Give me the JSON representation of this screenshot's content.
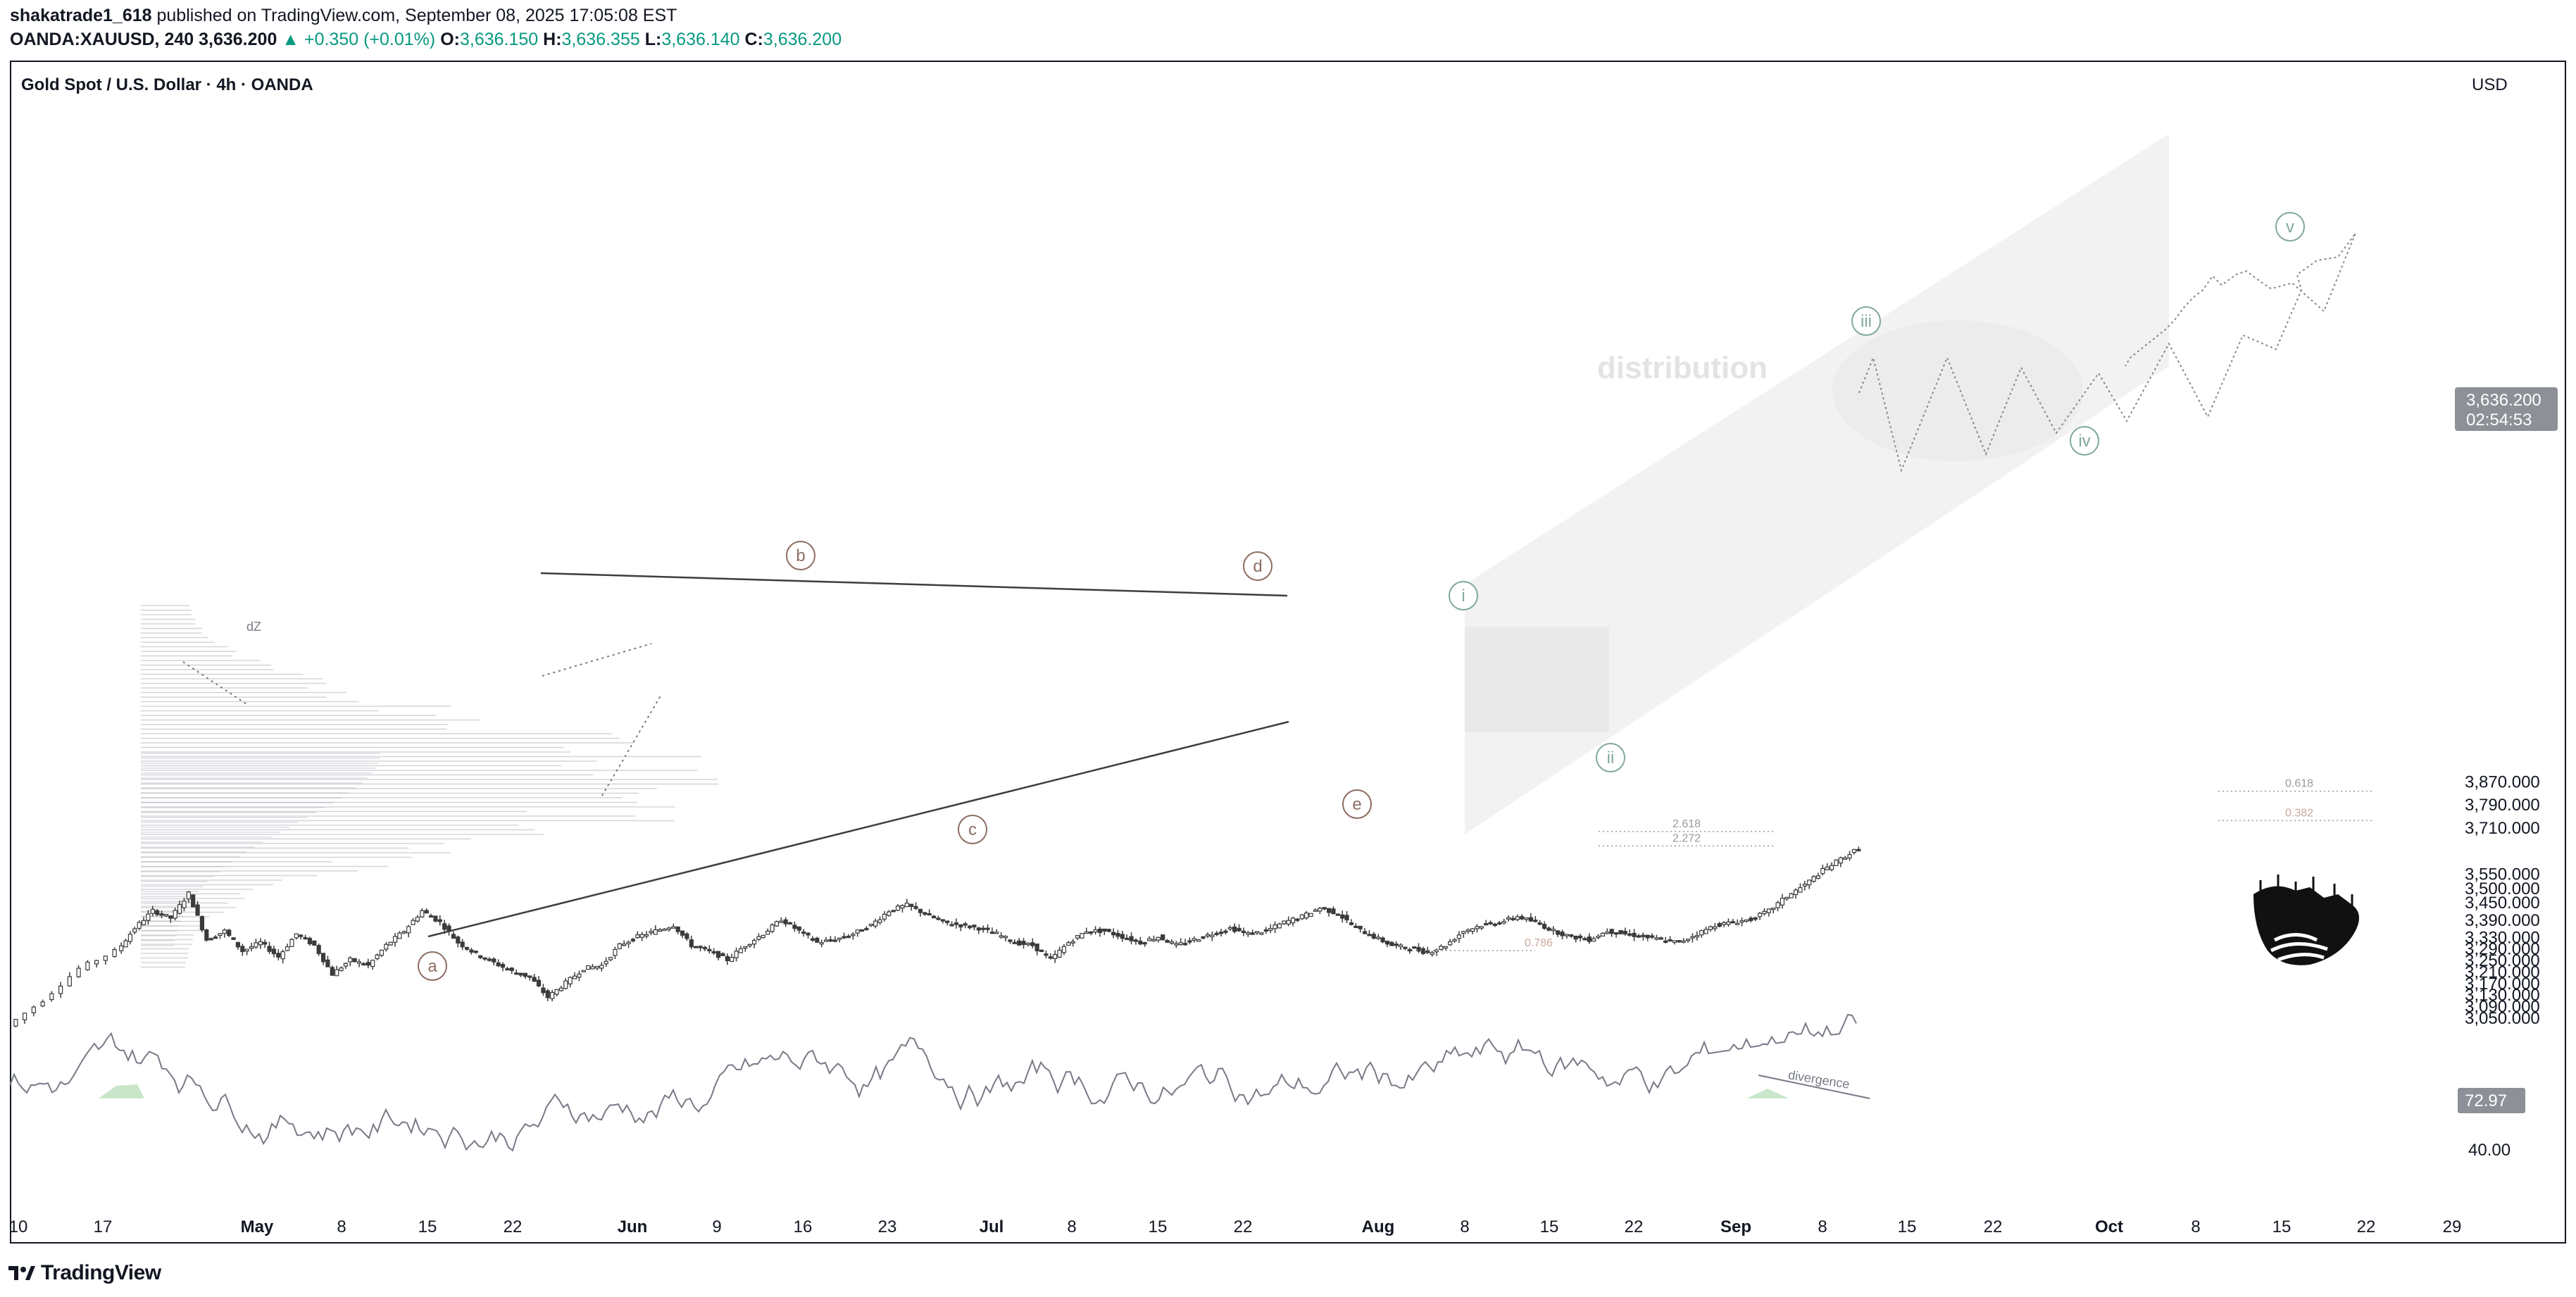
{
  "header": {
    "author": "shakatrade1_618",
    "published_text": "published on TradingView.com, September 08, 2025 17:05:08 EST",
    "symbol": "OANDA:XAUUSD, 240",
    "last_price": "3,636.200",
    "change": "▲ +0.350 (+0.01%)",
    "o_label": "O:",
    "o_value": "3,636.150",
    "h_label": "H:",
    "h_value": "3,636.355",
    "l_label": "L:",
    "l_value": "3,636.140",
    "c_label": "C:",
    "c_value": "3,636.200"
  },
  "pane": {
    "title": "Gold Spot / U.S. Dollar · 4h · OANDA",
    "currency": "USD",
    "price_tag": "3,636.200",
    "countdown": "02:54:53",
    "rsi_tag": "72.97"
  },
  "footer": {
    "brand": "TradingView"
  },
  "colors": {
    "candle": "#3b3b3b",
    "wave_brown": "#8d6e63",
    "wave_green": "#81a89c",
    "rsi_line": "#787b86",
    "rsi_fill": "#a5d6a7",
    "channel": "#f0f0f0",
    "volume_profile": "#b0b3bb"
  },
  "chart_data": {
    "type": "candlestick",
    "title": "Gold Spot / U.S. Dollar · 4h · OANDA",
    "y_axis": {
      "ticks": [
        "3,870.000",
        "3,790.000",
        "3,710.000",
        "3,550.000",
        "3,500.000",
        "3,450.000",
        "3,390.000",
        "3,330.000",
        "3,290.000",
        "3,250.000",
        "3,210.000",
        "3,170.000",
        "3,130.000",
        "3,090.000",
        "3,050.000"
      ],
      "range": [
        3010,
        3900
      ]
    },
    "rsi_axis": {
      "ticks": [
        "40.00"
      ],
      "range": [
        20,
        90
      ]
    },
    "x_axis": {
      "ticks": [
        "10",
        "17",
        "May",
        "8",
        "15",
        "22",
        "Jun",
        "9",
        "16",
        "23",
        "Jul",
        "8",
        "15",
        "22",
        "Aug",
        "8",
        "15",
        "22",
        "Sep",
        "8",
        "15",
        "22",
        "Oct",
        "8",
        "15",
        "22",
        "29"
      ],
      "ticks_bold": [
        "May",
        "Jun",
        "Jul",
        "Aug",
        "Sep",
        "Oct"
      ]
    },
    "price_path": [
      [
        0,
        3020
      ],
      [
        2,
        3110
      ],
      [
        4,
        3220
      ],
      [
        6,
        3280
      ],
      [
        7,
        3360
      ],
      [
        8,
        3420
      ],
      [
        9,
        3395
      ],
      [
        10,
        3480
      ],
      [
        11,
        3320
      ],
      [
        12,
        3350
      ],
      [
        13,
        3280
      ],
      [
        14,
        3310
      ],
      [
        15,
        3260
      ],
      [
        16,
        3340
      ],
      [
        17,
        3300
      ],
      [
        18,
        3200
      ],
      [
        19,
        3250
      ],
      [
        20,
        3230
      ],
      [
        21,
        3300
      ],
      [
        22,
        3350
      ],
      [
        23,
        3420
      ],
      [
        24,
        3380
      ],
      [
        25,
        3310
      ],
      [
        26,
        3270
      ],
      [
        27,
        3240
      ],
      [
        28,
        3210
      ],
      [
        29,
        3190
      ],
      [
        30,
        3120
      ],
      [
        31,
        3170
      ],
      [
        32,
        3220
      ],
      [
        33,
        3230
      ],
      [
        34,
        3300
      ],
      [
        35,
        3330
      ],
      [
        36,
        3350
      ],
      [
        37,
        3370
      ],
      [
        38,
        3300
      ],
      [
        39,
        3280
      ],
      [
        40,
        3250
      ],
      [
        41,
        3300
      ],
      [
        42,
        3340
      ],
      [
        43,
        3390
      ],
      [
        44,
        3350
      ],
      [
        45,
        3310
      ],
      [
        46,
        3320
      ],
      [
        47,
        3340
      ],
      [
        48,
        3370
      ],
      [
        49,
        3420
      ],
      [
        50,
        3440
      ],
      [
        51,
        3410
      ],
      [
        52,
        3380
      ],
      [
        53,
        3370
      ],
      [
        54,
        3360
      ],
      [
        55,
        3340
      ],
      [
        56,
        3310
      ],
      [
        57,
        3300
      ],
      [
        58,
        3250
      ],
      [
        59,
        3310
      ],
      [
        60,
        3350
      ],
      [
        61,
        3350
      ],
      [
        62,
        3330
      ],
      [
        63,
        3310
      ],
      [
        64,
        3330
      ],
      [
        65,
        3300
      ],
      [
        66,
        3320
      ],
      [
        67,
        3340
      ],
      [
        68,
        3360
      ],
      [
        69,
        3340
      ],
      [
        70,
        3350
      ],
      [
        71,
        3380
      ],
      [
        72,
        3400
      ],
      [
        73,
        3430
      ],
      [
        74,
        3410
      ],
      [
        75,
        3360
      ],
      [
        76,
        3330
      ],
      [
        77,
        3300
      ],
      [
        78,
        3290
      ],
      [
        79,
        3275
      ],
      [
        80,
        3300
      ],
      [
        81,
        3350
      ],
      [
        82,
        3370
      ],
      [
        83,
        3380
      ],
      [
        84,
        3400
      ],
      [
        85,
        3380
      ],
      [
        86,
        3350
      ],
      [
        87,
        3330
      ],
      [
        88,
        3320
      ],
      [
        89,
        3350
      ],
      [
        90,
        3340
      ],
      [
        91,
        3330
      ],
      [
        92,
        3320
      ],
      [
        93,
        3310
      ],
      [
        94,
        3340
      ],
      [
        95,
        3370
      ],
      [
        96,
        3380
      ],
      [
        97,
        3390
      ],
      [
        98,
        3420
      ],
      [
        99,
        3470
      ],
      [
        100,
        3510
      ],
      [
        101,
        3560
      ],
      [
        102,
        3600
      ],
      [
        103,
        3636
      ]
    ],
    "waves": [
      {
        "label": "a",
        "group": "brown"
      },
      {
        "label": "b",
        "group": "brown"
      },
      {
        "label": "c",
        "group": "brown"
      },
      {
        "label": "d",
        "group": "brown"
      },
      {
        "label": "e",
        "group": "brown"
      },
      {
        "label": "i",
        "group": "green"
      },
      {
        "label": "ii",
        "group": "green"
      },
      {
        "label": "iii",
        "group": "green"
      },
      {
        "label": "iv",
        "group": "green"
      },
      {
        "label": "v",
        "group": "green"
      }
    ],
    "fib_levels": [
      {
        "label": "2.618",
        "value": 3695
      },
      {
        "label": "2.272",
        "value": 3645
      },
      {
        "label": "0.786",
        "value": 3282
      },
      {
        "label": "0.618",
        "value": 3835
      },
      {
        "label": "0.382",
        "value": 3733
      }
    ],
    "annotations": [
      "distribution",
      "dZ",
      "divergence"
    ]
  }
}
